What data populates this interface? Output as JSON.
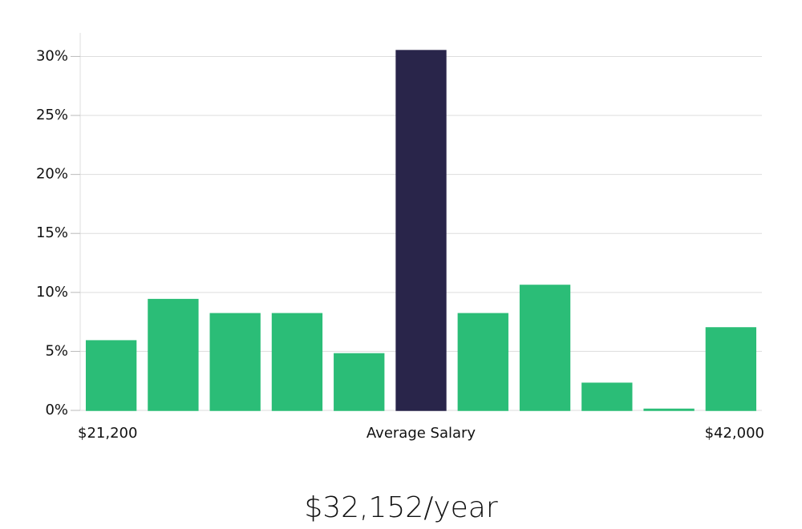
{
  "chart_data": {
    "type": "bar",
    "categories": [
      "$21,200",
      null,
      null,
      null,
      null,
      "Average Salary",
      null,
      null,
      null,
      null,
      "$42,000"
    ],
    "values": [
      5.9,
      9.4,
      8.2,
      8.2,
      4.8,
      30.5,
      8.2,
      10.6,
      2.3,
      0.1,
      7.0
    ],
    "colors": [
      "#2bbd77",
      "#2bbd77",
      "#2bbd77",
      "#2bbd77",
      "#2bbd77",
      "#29254a",
      "#2bbd77",
      "#2bbd77",
      "#2bbd77",
      "#2bbd77",
      "#2bbd77"
    ],
    "ylim": [
      0,
      32
    ],
    "yticks": [
      {
        "value": 0,
        "label": "0%"
      },
      {
        "value": 5,
        "label": "5%"
      },
      {
        "value": 10,
        "label": "10%"
      },
      {
        "value": 15,
        "label": "15%"
      },
      {
        "value": 20,
        "label": "20%"
      },
      {
        "value": 25,
        "label": "25%"
      },
      {
        "value": 30,
        "label": "30%"
      }
    ],
    "grid": true,
    "footer": "$32,152/year"
  }
}
